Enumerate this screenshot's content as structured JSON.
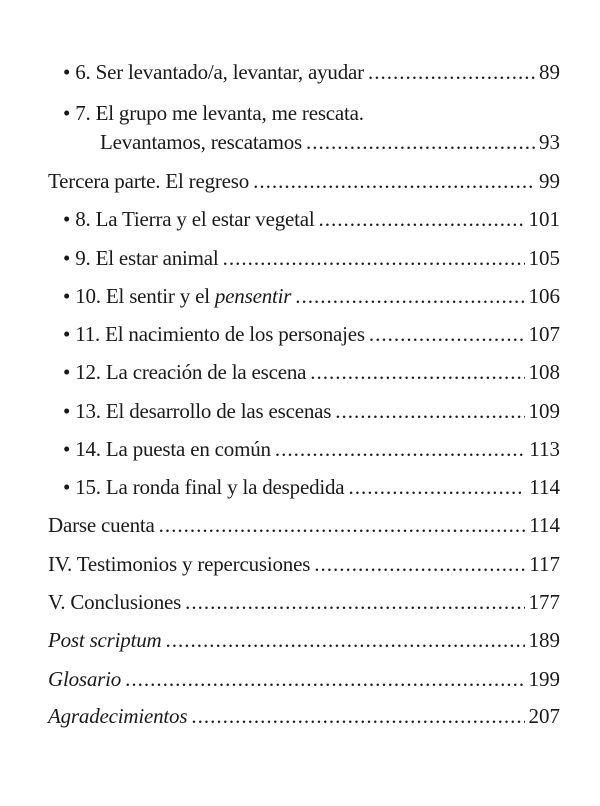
{
  "entries": [
    {
      "label": "• 6. Ser levantado/a, levantar, ayudar",
      "page": "89"
    },
    {
      "label": "• 7. El grupo me levanta, me rescata.",
      "page": ""
    },
    {
      "label": "Levantamos, rescatamos",
      "page": "93"
    },
    {
      "label": "Tercera parte. El regreso",
      "page": "99"
    },
    {
      "label": "• 8. La Tierra y el estar vegetal",
      "page": "101"
    },
    {
      "label": "• 9. El estar animal",
      "page": "105"
    },
    {
      "label_pre": "• 10. El sentir y el ",
      "label_it": "pensentir",
      "page": "106"
    },
    {
      "label": "• 11. El nacimiento de los personajes",
      "page": "107"
    },
    {
      "label": "• 12. La creación de la escena",
      "page": "108"
    },
    {
      "label": "• 13. El desarrollo de las escenas",
      "page": "109"
    },
    {
      "label": "• 14. La puesta en común",
      "page": "113"
    },
    {
      "label": "• 15. La ronda final y la despedida",
      "page": "114"
    },
    {
      "label": "Darse cuenta",
      "page": "114"
    },
    {
      "label": "IV. Testimonios y repercusiones",
      "page": "117"
    },
    {
      "label": "V. Conclusiones",
      "page": "177"
    },
    {
      "label": "Post scriptum",
      "page": "189"
    },
    {
      "label": "Glosario",
      "page": "199"
    },
    {
      "label": "Agradecimientos",
      "page": "207"
    }
  ]
}
